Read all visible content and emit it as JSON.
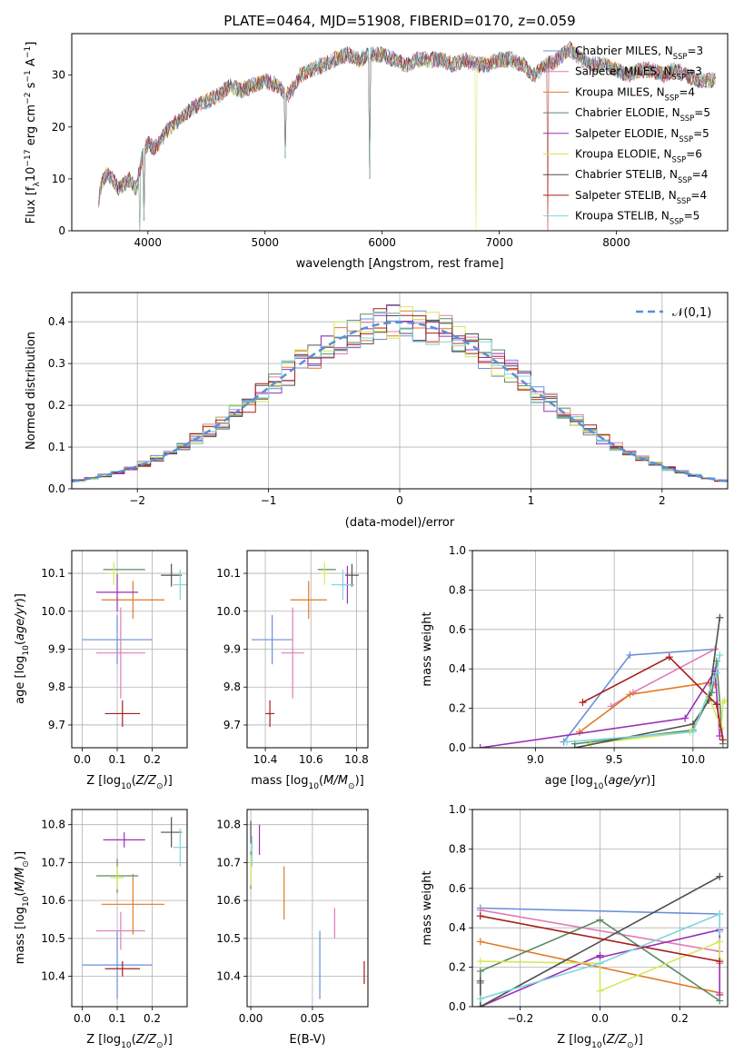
{
  "colors": {
    "chabrier_miles": "#6a8fd8",
    "salpeter_miles": "#e17bb5",
    "kroupa_miles": "#e07a24",
    "chabrier_elodie": "#5b8a64",
    "salpeter_elodie": "#9a30b8",
    "kroupa_elodie": "#d5e85a",
    "chabrier_stelib": "#4f4f4f",
    "salpeter_stelib": "#a81c1c",
    "kroupa_stelib": "#7fd6de",
    "normal": "#5a8ed8"
  },
  "chart_data": [
    {
      "type": "line",
      "title": "PLATE=0464, MJD=51908, FIBERID=0170, z=0.059",
      "xlabel": "wavelength [Angstrom, rest frame]",
      "ylabel": "Flux [f_λ10^{-17} erg cm^{-2} s^{-1} A^{-1}]",
      "xlim": [
        3350,
        8950
      ],
      "ylim": [
        0,
        38
      ],
      "xticks": [
        "4000",
        "5000",
        "6000",
        "7000",
        "8000"
      ],
      "yticks": [
        "0",
        "10",
        "20",
        "30"
      ],
      "grid": false,
      "legend_position": "top-right",
      "spectrum": {
        "x": [
          3580,
          3600,
          3650,
          3700,
          3750,
          3800,
          3850,
          3900,
          3950,
          4000,
          4050,
          4100,
          4150,
          4200,
          4300,
          4400,
          4500,
          4600,
          4700,
          4800,
          4900,
          5000,
          5100,
          5200,
          5300,
          5400,
          5500,
          5600,
          5700,
          5800,
          5900,
          6000,
          6100,
          6200,
          6300,
          6400,
          6500,
          6600,
          6700,
          6800,
          6900,
          7000,
          7100,
          7200,
          7300,
          7400,
          7500,
          7600,
          7700,
          7800,
          7900,
          8000,
          8100,
          8200,
          8300,
          8400,
          8500,
          8600,
          8700,
          8850
        ],
        "y": [
          6,
          9,
          11,
          10,
          8,
          9,
          10,
          8,
          14,
          17,
          16,
          17,
          19,
          20,
          22,
          24,
          25,
          26,
          28,
          27,
          28,
          29,
          28,
          26,
          30,
          31,
          32,
          33,
          34,
          33,
          34,
          34,
          33,
          32,
          33,
          33,
          33,
          32,
          33,
          32,
          32,
          33,
          33,
          32,
          30,
          32,
          33,
          35,
          33,
          32,
          32,
          31,
          30,
          31,
          31,
          30,
          31,
          30,
          29,
          29
        ]
      },
      "legend": [
        "Chabrier MILES, N_SSP=3",
        "Salpeter MILES, N_SSP=3",
        "Kroupa MILES, N_SSP=4",
        "Chabrier ELODIE, N_SSP=5",
        "Salpeter ELODIE, N_SSP=5",
        "Kroupa ELODIE, N_SSP=6",
        "Chabrier STELIB, N_SSP=4",
        "Salpeter STELIB, N_SSP=4",
        "Kroupa STELIB, N_SSP=5"
      ]
    },
    {
      "type": "histogram",
      "xlabel": "(data-model)/error",
      "ylabel": "Normed distribution",
      "xlim": [
        -2.5,
        2.5
      ],
      "ylim": [
        0,
        0.47
      ],
      "xticks": [
        "-2",
        "-1",
        "0",
        "1",
        "2"
      ],
      "yticks": [
        "0.0",
        "0.1",
        "0.2",
        "0.3",
        "0.4"
      ],
      "grid": true,
      "legend": [
        "𝒩(0,1)"
      ],
      "legend_position": "top-right",
      "bin_width": 0.1
    },
    {
      "type": "errorbar",
      "xlabel": "Z [log10(Z/Z⊙)]",
      "ylabel": "age [log10(age/yr)]",
      "xlim": [
        -0.03,
        0.3
      ],
      "ylim": [
        9.64,
        10.16
      ],
      "xticks": [
        "0.0",
        "0.1",
        "0.2"
      ],
      "yticks": [
        "9.7",
        "9.8",
        "9.9",
        "10.0",
        "10.1"
      ],
      "grid": true,
      "points": [
        {
          "x": 0.1,
          "xerr": 0.1,
          "y": 9.925,
          "yerr": 0.065
        },
        {
          "x": 0.11,
          "xerr": 0.07,
          "y": 9.89,
          "yerr": 0.12
        },
        {
          "x": 0.145,
          "xerr": 0.09,
          "y": 10.03,
          "yerr": 0.05
        },
        {
          "x": 0.12,
          "xerr": 0.06,
          "y": 10.11,
          "yerr": 0.0
        },
        {
          "x": 0.1,
          "xerr": 0.06,
          "y": 10.05,
          "yerr": 0.05
        },
        {
          "x": 0.09,
          "xerr": 0.02,
          "y": 10.1,
          "yerr": 0.03
        },
        {
          "x": 0.255,
          "xerr": 0.03,
          "y": 10.095,
          "yerr": 0.03
        },
        {
          "x": 0.115,
          "xerr": 0.05,
          "y": 9.73,
          "yerr": 0.035
        },
        {
          "x": 0.28,
          "xerr": 0.02,
          "y": 10.07,
          "yerr": 0.04
        }
      ]
    },
    {
      "type": "errorbar",
      "xlabel": "mass [log10(M/M⊙)]",
      "xlim": [
        10.32,
        10.85
      ],
      "ylim": [
        9.64,
        10.16
      ],
      "xticks": [
        "10.4",
        "10.6",
        "10.8"
      ],
      "yticks": [
        "9.7",
        "9.8",
        "9.9",
        "10.0",
        "10.1"
      ],
      "grid": true,
      "points": [
        {
          "x": 10.43,
          "xerr": 0.09,
          "y": 9.925,
          "yerr": 0.065
        },
        {
          "x": 10.52,
          "xerr": 0.05,
          "y": 9.89,
          "yerr": 0.12
        },
        {
          "x": 10.59,
          "xerr": 0.08,
          "y": 10.03,
          "yerr": 0.05
        },
        {
          "x": 10.67,
          "xerr": 0.04,
          "y": 10.11,
          "yerr": 0.0
        },
        {
          "x": 10.76,
          "xerr": 0.03,
          "y": 10.07,
          "yerr": 0.05
        },
        {
          "x": 10.66,
          "xerr": 0.02,
          "y": 10.1,
          "yerr": 0.03
        },
        {
          "x": 10.78,
          "xerr": 0.03,
          "y": 10.095,
          "yerr": 0.03
        },
        {
          "x": 10.42,
          "xerr": 0.02,
          "y": 9.73,
          "yerr": 0.035
        },
        {
          "x": 10.74,
          "xerr": 0.05,
          "y": 10.07,
          "yerr": 0.04
        }
      ]
    },
    {
      "type": "line",
      "xlabel": "age [log10(age/yr)]",
      "ylabel": "mass weight",
      "xlim": [
        8.6,
        10.22
      ],
      "ylim": [
        0,
        1.0
      ],
      "xticks": [
        "9.0",
        "9.5",
        "10.0"
      ],
      "yticks": [
        "0.0",
        "0.2",
        "0.4",
        "0.6",
        "0.8",
        "1.0"
      ],
      "grid": true,
      "series": [
        {
          "x": [
            9.18,
            9.6,
            10.14
          ],
          "y": [
            0.03,
            0.47,
            0.5
          ]
        },
        {
          "x": [
            9.48,
            9.62,
            10.14
          ],
          "y": [
            0.21,
            0.28,
            0.5
          ]
        },
        {
          "x": [
            9.28,
            9.6,
            10.1,
            10.14
          ],
          "y": [
            0.08,
            0.27,
            0.33,
            0.32
          ]
        },
        {
          "x": [
            9.25,
            10.0,
            10.12,
            10.15,
            10.19
          ],
          "y": [
            0.02,
            0.09,
            0.28,
            0.44,
            0.02
          ]
        },
        {
          "x": [
            8.65,
            9.95,
            10.14,
            10.17
          ],
          "y": [
            0.0,
            0.15,
            0.39,
            0.06
          ]
        },
        {
          "x": [
            9.35,
            9.98,
            10.1,
            10.18,
            10.19,
            10.2
          ],
          "y": [
            0.02,
            0.08,
            0.26,
            0.1,
            0.23,
            0.24
          ]
        },
        {
          "x": [
            9.25,
            10.0,
            10.1,
            10.17
          ],
          "y": [
            0.0,
            0.12,
            0.24,
            0.66
          ]
        },
        {
          "x": [
            9.3,
            9.85,
            10.15,
            10.19
          ],
          "y": [
            0.23,
            0.46,
            0.22,
            0.04
          ]
        },
        {
          "x": [
            9.2,
            10.0,
            10.15,
            10.17
          ],
          "y": [
            0.03,
            0.08,
            0.38,
            0.47
          ]
        }
      ]
    },
    {
      "type": "errorbar",
      "xlabel": "Z [log10(Z/Z⊙)]",
      "ylabel": "mass [log10(M/M⊙)]",
      "xlim": [
        -0.03,
        0.3
      ],
      "ylim": [
        10.32,
        10.84
      ],
      "xticks": [
        "0.0",
        "0.1",
        "0.2"
      ],
      "yticks": [
        "10.4",
        "10.5",
        "10.6",
        "10.7",
        "10.8"
      ],
      "grid": true,
      "points": [
        {
          "x": 0.1,
          "xerr": 0.1,
          "y": 10.43,
          "yerr": 0.09
        },
        {
          "x": 0.11,
          "xerr": 0.07,
          "y": 10.52,
          "yerr": 0.05
        },
        {
          "x": 0.145,
          "xerr": 0.09,
          "y": 10.59,
          "yerr": 0.08
        },
        {
          "x": 0.1,
          "xerr": 0.06,
          "y": 10.665,
          "yerr": 0.045
        },
        {
          "x": 0.12,
          "xerr": 0.06,
          "y": 10.76,
          "yerr": 0.02
        },
        {
          "x": 0.1,
          "xerr": 0.02,
          "y": 10.66,
          "yerr": 0.03
        },
        {
          "x": 0.255,
          "xerr": 0.03,
          "y": 10.78,
          "yerr": 0.04
        },
        {
          "x": 0.115,
          "xerr": 0.05,
          "y": 10.42,
          "yerr": 0.02
        },
        {
          "x": 0.28,
          "xerr": 0.02,
          "y": 10.74,
          "yerr": 0.05
        }
      ]
    },
    {
      "type": "errorbar",
      "xlabel": "E(B-V)",
      "xlim": [
        -0.003,
        0.095
      ],
      "ylim": [
        10.32,
        10.84
      ],
      "xticks": [
        "0.00",
        "0.05"
      ],
      "yticks": [
        "10.4",
        "10.5",
        "10.6",
        "10.7",
        "10.8"
      ],
      "grid": true,
      "points": [
        {
          "x": 0.056,
          "xerr": 0,
          "y": 10.43,
          "yerr": 0.09
        },
        {
          "x": 0.068,
          "xerr": 0,
          "y": 10.54,
          "yerr": 0.04
        },
        {
          "x": 0.027,
          "xerr": 0,
          "y": 10.62,
          "yerr": 0.07
        },
        {
          "x": 0.0,
          "xerr": 0,
          "y": 10.68,
          "yerr": 0.05
        },
        {
          "x": 0.007,
          "xerr": 0,
          "y": 10.76,
          "yerr": 0.04
        },
        {
          "x": 0.0,
          "xerr": 0,
          "y": 10.68,
          "yerr": 0.04
        },
        {
          "x": 0.0,
          "xerr": 0,
          "y": 10.78,
          "yerr": 0.03
        },
        {
          "x": 0.092,
          "xerr": 0,
          "y": 10.41,
          "yerr": 0.03
        },
        {
          "x": 0.001,
          "xerr": 0,
          "y": 10.73,
          "yerr": 0.04
        }
      ]
    },
    {
      "type": "line",
      "xlabel": "Z [log10(Z/Z⊙)]",
      "ylabel": "mass weight",
      "xlim": [
        -0.32,
        0.32
      ],
      "ylim": [
        0,
        1.0
      ],
      "xticks": [
        "-0.2",
        "0.0",
        "0.2"
      ],
      "yticks": [
        "0.0",
        "0.2",
        "0.4",
        "0.6",
        "0.8",
        "1.0"
      ],
      "grid": true,
      "series": [
        {
          "x": [
            -0.3,
            0.3
          ],
          "y": [
            0.5,
            0.47
          ]
        },
        {
          "x": [
            -0.3,
            0.3,
            0.3
          ],
          "y": [
            0.49,
            0.28,
            0.22
          ]
        },
        {
          "x": [
            -0.3,
            0.3
          ],
          "y": [
            0.33,
            0.07
          ]
        },
        {
          "x": [
            -0.3,
            -0.3,
            0.0,
            0.3
          ],
          "y": [
            0.12,
            0.18,
            0.44,
            0.03
          ]
        },
        {
          "x": [
            -0.3,
            0.0,
            0.0,
            0.3,
            0.3
          ],
          "y": [
            0.0,
            0.26,
            0.25,
            0.39,
            0.06
          ]
        },
        {
          "x": [
            -0.3,
            0.0,
            0.0,
            0.3,
            0.3
          ],
          "y": [
            0.23,
            0.22,
            0.08,
            0.33,
            0.24
          ]
        },
        {
          "x": [
            -0.3,
            -0.3,
            0.3
          ],
          "y": [
            0.13,
            0.0,
            0.66
          ]
        },
        {
          "x": [
            -0.3,
            0.3
          ],
          "y": [
            0.46,
            0.23
          ]
        },
        {
          "x": [
            -0.3,
            0.0,
            0.3,
            0.3
          ],
          "y": [
            0.04,
            0.22,
            0.47,
            0.38
          ]
        }
      ]
    }
  ]
}
